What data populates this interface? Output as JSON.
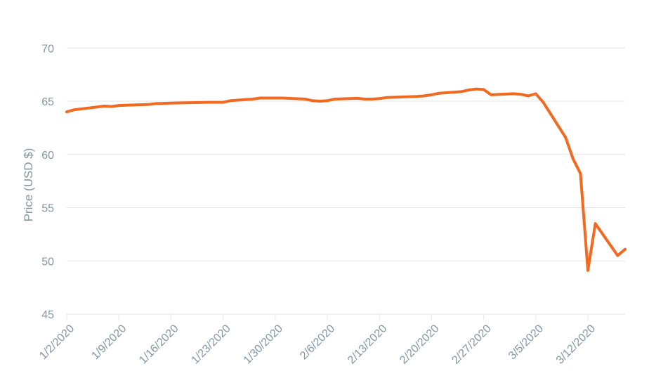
{
  "chart_data": {
    "type": "line",
    "title": "",
    "xlabel": "",
    "ylabel": "Price (USD $)",
    "ylim": [
      45,
      72
    ],
    "yticks": [
      45,
      50,
      55,
      60,
      65,
      70
    ],
    "xlim": [
      "1/2/2020",
      "3/17/2020"
    ],
    "xticks": [
      "1/2/2020",
      "1/9/2020",
      "1/16/2020",
      "1/23/2020",
      "1/30/2020",
      "2/6/2020",
      "2/13/2020",
      "2/20/2020",
      "2/27/2020",
      "3/5/2020",
      "3/12/2020"
    ],
    "grid": true,
    "legend": "none",
    "series": [
      {
        "color": "#f26a21",
        "points": [
          [
            "1/2/2020",
            64.0
          ],
          [
            "1/3/2020",
            64.2
          ],
          [
            "1/6/2020",
            64.45
          ],
          [
            "1/7/2020",
            64.55
          ],
          [
            "1/8/2020",
            64.5
          ],
          [
            "1/9/2020",
            64.6
          ],
          [
            "1/10/2020",
            64.62
          ],
          [
            "1/13/2020",
            64.7
          ],
          [
            "1/14/2020",
            64.78
          ],
          [
            "1/15/2020",
            64.8
          ],
          [
            "1/16/2020",
            64.82
          ],
          [
            "1/17/2020",
            64.84
          ],
          [
            "1/21/2020",
            64.9
          ],
          [
            "1/22/2020",
            64.9
          ],
          [
            "1/23/2020",
            64.9
          ],
          [
            "1/24/2020",
            65.05
          ],
          [
            "1/27/2020",
            65.2
          ],
          [
            "1/28/2020",
            65.3
          ],
          [
            "1/29/2020",
            65.3
          ],
          [
            "1/30/2020",
            65.3
          ],
          [
            "1/31/2020",
            65.3
          ],
          [
            "2/3/2020",
            65.2
          ],
          [
            "2/4/2020",
            65.05
          ],
          [
            "2/5/2020",
            65.0
          ],
          [
            "2/6/2020",
            65.05
          ],
          [
            "2/7/2020",
            65.2
          ],
          [
            "2/10/2020",
            65.27
          ],
          [
            "2/11/2020",
            65.2
          ],
          [
            "2/12/2020",
            65.2
          ],
          [
            "2/13/2020",
            65.25
          ],
          [
            "2/14/2020",
            65.35
          ],
          [
            "2/18/2020",
            65.45
          ],
          [
            "2/19/2020",
            65.5
          ],
          [
            "2/20/2020",
            65.6
          ],
          [
            "2/21/2020",
            65.75
          ],
          [
            "2/24/2020",
            65.9
          ],
          [
            "2/25/2020",
            66.05
          ],
          [
            "2/26/2020",
            66.15
          ],
          [
            "2/27/2020",
            66.1
          ],
          [
            "2/28/2020",
            65.6
          ],
          [
            "3/2/2020",
            65.7
          ],
          [
            "3/3/2020",
            65.65
          ],
          [
            "3/4/2020",
            65.5
          ],
          [
            "3/5/2020",
            65.7
          ],
          [
            "3/6/2020",
            64.9
          ],
          [
            "3/9/2020",
            61.6
          ],
          [
            "3/10/2020",
            59.6
          ],
          [
            "3/11/2020",
            58.2
          ],
          [
            "3/12/2020",
            49.1
          ],
          [
            "3/13/2020",
            53.5
          ],
          [
            "3/16/2020",
            50.5
          ],
          [
            "3/17/2020",
            51.1
          ]
        ]
      }
    ]
  }
}
